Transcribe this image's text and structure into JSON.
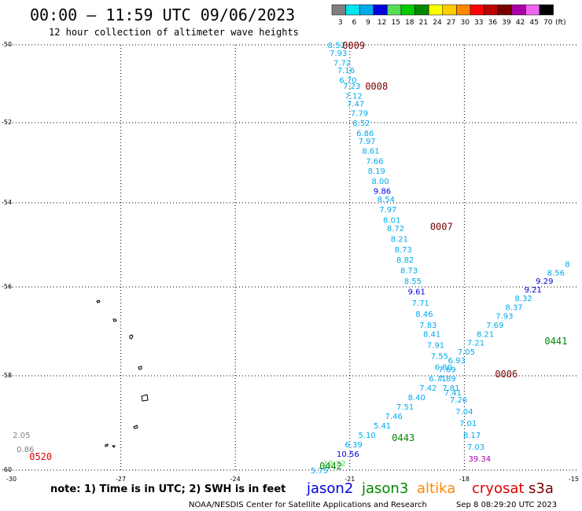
{
  "header": {
    "title": "00:00 — 11:59 UTC 09/06/2023",
    "subtitle": "12 hour collection of altimeter wave heights"
  },
  "legend": {
    "unit": "(ft)",
    "bins": [
      {
        "label": "3",
        "color": "#7f7f7f"
      },
      {
        "label": "6",
        "color": "#00e5ee"
      },
      {
        "label": "9",
        "color": "#00aaee"
      },
      {
        "label": "12",
        "color": "#0000dd"
      },
      {
        "label": "15",
        "color": "#55dd55"
      },
      {
        "label": "18",
        "color": "#00cc00"
      },
      {
        "label": "21",
        "color": "#008800"
      },
      {
        "label": "24",
        "color": "#ffff00"
      },
      {
        "label": "27",
        "color": "#ffcc00"
      },
      {
        "label": "30",
        "color": "#ff8800"
      },
      {
        "label": "33",
        "color": "#ff0000"
      },
      {
        "label": "36",
        "color": "#bb0000"
      },
      {
        "label": "39",
        "color": "#770000"
      },
      {
        "label": "42",
        "color": "#aa00aa"
      },
      {
        "label": "45",
        "color": "#ee66ee"
      },
      {
        "label": "70",
        "color": "#000000"
      }
    ]
  },
  "satellites": [
    {
      "name": "jason2",
      "color": "#0000dd"
    },
    {
      "name": "jason3",
      "color": "#008800"
    },
    {
      "name": "altika",
      "color": "#ff8800"
    },
    {
      "name": "cryosat",
      "color": "#dd0000"
    },
    {
      "name": "s3a",
      "color": "#770000"
    }
  ],
  "footer": {
    "note": "note: 1) Time is in UTC; 2) SWH is in feet",
    "credit": "NOAA/NESDIS Center for Satellite Applications and Research",
    "timestamp": "Sep  8 08:29:20 UTC 2023"
  },
  "chart_data": {
    "type": "scatter",
    "title": "00:00 — 11:59 UTC 09/06/2023",
    "subtitle": "12 hour collection of altimeter wave heights",
    "xlim": [
      -30,
      -15
    ],
    "ylim": [
      -60,
      -50
    ],
    "x_ticks": [
      -30,
      -27,
      -24,
      -21,
      -18,
      -15
    ],
    "y_ticks": [
      -50,
      -52,
      -54,
      -56,
      -58,
      -60
    ],
    "grid": true,
    "time_labels": [
      {
        "label": "0009",
        "x": -20.9,
        "y": -50.0,
        "color": "#770000"
      },
      {
        "label": "0008",
        "x": -20.3,
        "y": -51.05,
        "color": "#770000"
      },
      {
        "label": "0007",
        "x": -18.6,
        "y": -54.55,
        "color": "#770000"
      },
      {
        "label": "0006",
        "x": -16.9,
        "y": -57.95,
        "color": "#770000"
      },
      {
        "label": "0443",
        "x": -19.6,
        "y": -59.3,
        "color": "#008800"
      },
      {
        "label": "0442",
        "x": -21.5,
        "y": -59.9,
        "color": "#008800"
      },
      {
        "label": "0441",
        "x": -15.6,
        "y": -57.2,
        "color": "#008800"
      },
      {
        "label": "0520",
        "x": -29.1,
        "y": -59.7,
        "color": "#dd0000"
      }
    ],
    "series": [
      {
        "name": "cryosat",
        "color": "#00aaee",
        "points": [
          {
            "x": -21.35,
            "y": -50.0,
            "v": "8.52"
          },
          {
            "x": -21.3,
            "y": -50.2,
            "v": "7.93"
          },
          {
            "x": -21.2,
            "y": -50.45,
            "v": "7.72"
          },
          {
            "x": -21.1,
            "y": -50.65,
            "v": "7.16"
          },
          {
            "x": -21.05,
            "y": -50.9,
            "v": "6.70"
          },
          {
            "x": -20.95,
            "y": -51.05,
            "v": "7.23"
          },
          {
            "x": -20.9,
            "y": -51.3,
            "v": "7.12"
          },
          {
            "x": -20.85,
            "y": -51.5,
            "v": "7.47"
          },
          {
            "x": -20.75,
            "y": -51.75,
            "v": "7.79"
          },
          {
            "x": -20.7,
            "y": -52.0,
            "v": "8.52"
          },
          {
            "x": -20.6,
            "y": -52.25,
            "v": "6.86"
          },
          {
            "x": -20.55,
            "y": -52.45,
            "v": "7.97"
          },
          {
            "x": -20.45,
            "y": -52.7,
            "v": "8.61"
          },
          {
            "x": -20.35,
            "y": -52.95,
            "v": "7.66"
          },
          {
            "x": -20.3,
            "y": -53.2,
            "v": "8.19"
          },
          {
            "x": -20.2,
            "y": -53.45,
            "v": "8.00"
          },
          {
            "x": -20.15,
            "y": -53.7,
            "v": "9.86"
          },
          {
            "x": -20.05,
            "y": -53.9,
            "v": "8.54"
          },
          {
            "x": -20.0,
            "y": -54.15,
            "v": "7.97"
          },
          {
            "x": -19.9,
            "y": -54.4,
            "v": "8.01"
          },
          {
            "x": -19.8,
            "y": -54.6,
            "v": "8.72"
          },
          {
            "x": -19.7,
            "y": -54.85,
            "v": "8.21"
          },
          {
            "x": -19.6,
            "y": -55.1,
            "v": "8.73"
          },
          {
            "x": -19.55,
            "y": -55.35,
            "v": "8.82"
          },
          {
            "x": -19.45,
            "y": -55.6,
            "v": "8.73"
          },
          {
            "x": -19.35,
            "y": -55.85,
            "v": "8.55"
          },
          {
            "x": -19.25,
            "y": -56.1,
            "v": "9.61"
          },
          {
            "x": -19.15,
            "y": -56.35,
            "v": "7.71"
          },
          {
            "x": -19.05,
            "y": -56.6,
            "v": "8.46"
          },
          {
            "x": -18.95,
            "y": -56.85,
            "v": "7.83"
          },
          {
            "x": -18.85,
            "y": -57.05,
            "v": "8.41"
          },
          {
            "x": -18.75,
            "y": -57.3,
            "v": "7.91"
          },
          {
            "x": -18.65,
            "y": -57.55,
            "v": "7.55"
          },
          {
            "x": -18.55,
            "y": -57.8,
            "v": "6.80"
          },
          {
            "x": -18.45,
            "y": -58.05,
            "v": "7.89"
          },
          {
            "x": -18.35,
            "y": -58.25,
            "v": "7.81"
          },
          {
            "x": -18.3,
            "y": -58.35,
            "v": "7.41"
          },
          {
            "x": -18.15,
            "y": -58.5,
            "v": "7.26"
          },
          {
            "x": -18.0,
            "y": -58.75,
            "v": "7.04"
          },
          {
            "x": -17.9,
            "y": -59.0,
            "v": "7.01"
          },
          {
            "x": -17.8,
            "y": -59.25,
            "v": "8.17"
          },
          {
            "x": -17.7,
            "y": -59.5,
            "v": "7.03"
          },
          {
            "x": -17.6,
            "y": -59.75,
            "v": "39.34"
          }
        ]
      },
      {
        "name": "jason3",
        "color": "#00aaee",
        "points": [
          {
            "x": -21.8,
            "y": -60.0,
            "v": "5.75"
          },
          {
            "x": -21.4,
            "y": -59.85,
            "v": "12.22"
          },
          {
            "x": -21.05,
            "y": -59.65,
            "v": "10.56"
          },
          {
            "x": -20.9,
            "y": -59.45,
            "v": "6.39"
          },
          {
            "x": -20.55,
            "y": -59.25,
            "v": "5.10"
          },
          {
            "x": -20.15,
            "y": -59.05,
            "v": "5.41"
          },
          {
            "x": -19.85,
            "y": -58.85,
            "v": "7.46"
          },
          {
            "x": -19.55,
            "y": -58.65,
            "v": "7.51"
          },
          {
            "x": -19.25,
            "y": -58.45,
            "v": "8.40"
          },
          {
            "x": -18.95,
            "y": -58.25,
            "v": "7.42"
          },
          {
            "x": -18.7,
            "y": -58.05,
            "v": "6.71"
          },
          {
            "x": -18.45,
            "y": -57.85,
            "v": "7.69"
          },
          {
            "x": -18.2,
            "y": -57.65,
            "v": "6.93"
          },
          {
            "x": -17.95,
            "y": -57.45,
            "v": "7.05"
          },
          {
            "x": -17.7,
            "y": -57.25,
            "v": "7.21"
          },
          {
            "x": -17.45,
            "y": -57.05,
            "v": "8.21"
          },
          {
            "x": -17.2,
            "y": -56.85,
            "v": "7.69"
          },
          {
            "x": -16.95,
            "y": -56.65,
            "v": "7.93"
          },
          {
            "x": -16.7,
            "y": -56.45,
            "v": "8.37"
          },
          {
            "x": -16.45,
            "y": -56.25,
            "v": "8.32"
          },
          {
            "x": -16.2,
            "y": -56.05,
            "v": "9.21"
          },
          {
            "x": -15.9,
            "y": -55.85,
            "v": "9.29"
          },
          {
            "x": -15.6,
            "y": -55.65,
            "v": "8.56"
          },
          {
            "x": -15.3,
            "y": -55.45,
            "v": "8"
          }
        ]
      },
      {
        "name": "jason3-partial",
        "color": "#7f7f7f",
        "points": [
          {
            "x": -29.6,
            "y": -59.25,
            "v": "2.05"
          },
          {
            "x": -29.5,
            "y": -59.55,
            "v": "0.86"
          }
        ]
      }
    ]
  }
}
